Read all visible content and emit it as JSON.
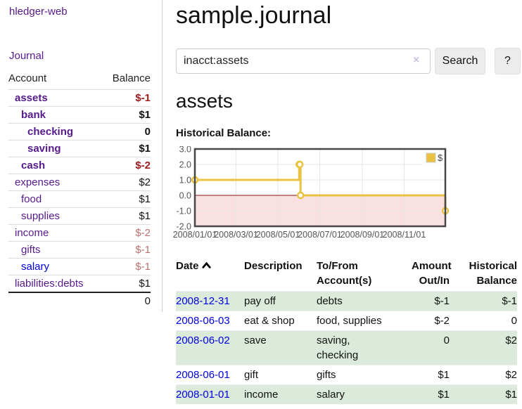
{
  "app": {
    "brand": "hledger-web"
  },
  "sidebar": {
    "journal_link": "Journal",
    "accounts": {
      "headers": {
        "account": "Account",
        "balance": "Balance"
      },
      "rows": [
        {
          "name": "assets",
          "balance": "$-1",
          "depth": 1,
          "emphasis": true,
          "negative": "strong"
        },
        {
          "name": "bank",
          "balance": "$1",
          "depth": 2,
          "emphasis": true
        },
        {
          "name": "checking",
          "balance": "0",
          "depth": 3,
          "emphasis": true
        },
        {
          "name": "saving",
          "balance": "$1",
          "depth": 3,
          "emphasis": true
        },
        {
          "name": "cash",
          "balance": "$-2",
          "depth": 2,
          "emphasis": true,
          "negative": "strong"
        },
        {
          "name": "expenses",
          "balance": "$2",
          "depth": 1
        },
        {
          "name": "food",
          "balance": "$1",
          "depth": 2
        },
        {
          "name": "supplies",
          "balance": "$1",
          "depth": 2
        },
        {
          "name": "income",
          "balance": "$-2",
          "depth": 1,
          "negative": "muted"
        },
        {
          "name": "gifts",
          "balance": "$-1",
          "depth": 2,
          "negative": "muted"
        },
        {
          "name": "salary",
          "balance": "$-1",
          "depth": 2,
          "negative": "muted",
          "link_color": "blue"
        },
        {
          "name": "liabilities:debts",
          "balance": "$1",
          "depth": 1
        }
      ],
      "total": "0"
    }
  },
  "main": {
    "title": "sample.journal",
    "search": {
      "value": "inacct:assets",
      "clear_icon": "×",
      "search_button": "Search",
      "help_button": "?"
    },
    "account_heading": "assets",
    "chart_heading": "Historical Balance:"
  },
  "chart_data": {
    "type": "line",
    "step": true,
    "title": "Historical Balance",
    "series": [
      {
        "name": "$",
        "color": "#e8c240",
        "points": [
          [
            "2008-01-01",
            1
          ],
          [
            "2008-06-01",
            2
          ],
          [
            "2008-06-02",
            2
          ],
          [
            "2008-06-03",
            0
          ],
          [
            "2008-12-31",
            -1
          ]
        ]
      }
    ],
    "xlim": [
      "2008-01-01",
      "2008-12-31"
    ],
    "ylim": [
      -2,
      3
    ],
    "x_ticks": [
      "2008/01/01",
      "2008/03/01",
      "2008/05/01",
      "2008/07/01",
      "2008/09/01",
      "2008/11/01"
    ],
    "y_ticks": [
      "3.0",
      "2.0",
      "1.0",
      "0.0",
      "-1.0",
      "-2.0"
    ],
    "grid": true,
    "legend": {
      "position": "top-right",
      "label": "$"
    },
    "colors": {
      "negative_region": "#fae1e1",
      "zero_line": "#8b1010",
      "grid": "#e6e6e6",
      "border": "#474747",
      "tick_text": "#545454"
    }
  },
  "register": {
    "headers": {
      "date": "Date",
      "description": "Description",
      "accounts": "To/From\nAccount(s)",
      "amount": "Amount\nOut/In",
      "balance": "Historical\nBalance"
    },
    "rows": [
      {
        "date": "2008-12-31",
        "description": "pay off",
        "accounts": "debts",
        "amount": "$-1",
        "balance": "$-1",
        "amount_negative": true,
        "balance_negative": true
      },
      {
        "date": "2008-06-03",
        "description": "eat & shop",
        "accounts": "food, supplies",
        "amount": "$-2",
        "balance": "0",
        "amount_negative": true
      },
      {
        "date": "2008-06-02",
        "description": "save",
        "accounts": "saving,\nchecking",
        "amount": "0",
        "balance": "$2"
      },
      {
        "date": "2008-06-01",
        "description": "gift",
        "accounts": "gifts",
        "amount": "$1",
        "balance": "$2"
      },
      {
        "date": "2008-01-01",
        "description": "income",
        "accounts": "salary",
        "amount": "$1",
        "balance": "$1"
      }
    ]
  },
  "colors": {
    "link_purple": "#551a8b",
    "link_blue": "#0000e0",
    "negative_strong": "#a01c1c",
    "negative_muted": "#b97272",
    "row_stripe_green": "#dbeadb",
    "accent_gold": "#e8c240"
  }
}
